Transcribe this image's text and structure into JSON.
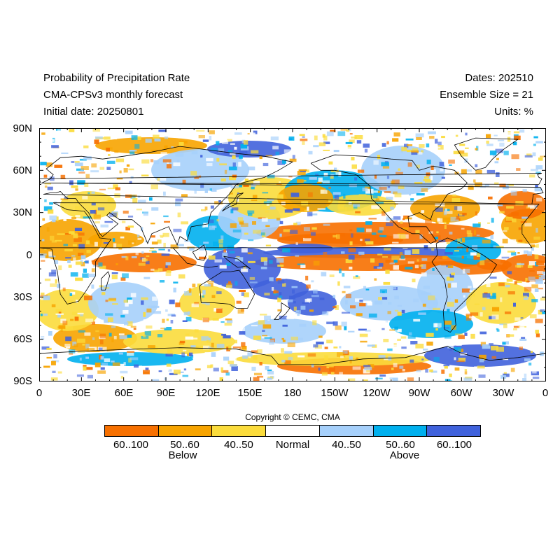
{
  "header": {
    "title": "Probability of Precipitation Rate",
    "model": "CMA-CPSv3 monthly forecast",
    "initial": "Initial date: 20250801",
    "dates": "Dates: 202510",
    "ensemble": "Ensemble Size = 21",
    "units": "Units: %"
  },
  "map": {
    "lat_labels": [
      "90N",
      "60N",
      "30N",
      "0",
      "30S",
      "60S",
      "90S"
    ],
    "lon_labels": [
      "0",
      "30E",
      "60E",
      "90E",
      "120E",
      "150E",
      "180",
      "150W",
      "120W",
      "90W",
      "60W",
      "30W",
      "0"
    ]
  },
  "copyright": "Copyright © CEMC, CMA",
  "legend": {
    "bins": [
      {
        "label": "60..100",
        "color": "#f77000"
      },
      {
        "label": "50..60",
        "color": "#f7a400"
      },
      {
        "label": "40..50",
        "color": "#fbdc3c"
      },
      {
        "label": "Normal",
        "color": "#ffffff"
      },
      {
        "label": "40..50",
        "color": "#a6d0fb"
      },
      {
        "label": "50..60",
        "color": "#00b0ee"
      },
      {
        "label": "60..100",
        "color": "#4062dc"
      }
    ],
    "below": "Below",
    "above": "Above"
  }
}
